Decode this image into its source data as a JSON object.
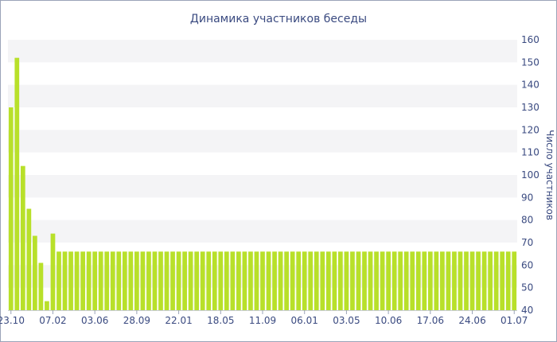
{
  "chart_data": {
    "type": "bar",
    "title": "Динамика участников беседы",
    "xlabel": "",
    "ylabel": "Число участников",
    "ylim": [
      40,
      160
    ],
    "yticks": [
      40,
      50,
      60,
      70,
      80,
      90,
      100,
      110,
      120,
      130,
      140,
      150,
      160
    ],
    "y_axis_side": "right",
    "grid": "alternating horizontal bands",
    "legend": "none",
    "bar_color": "#b8e02a",
    "x_tick_labels": [
      "23.10",
      "07.02",
      "03.06",
      "28.09",
      "22.01",
      "18.05",
      "11.09",
      "06.01",
      "03.05",
      "10.06",
      "17.06",
      "24.06",
      "01.07"
    ],
    "x_tick_positions": [
      0,
      7,
      14,
      21,
      28,
      35,
      42,
      49,
      56,
      63,
      70,
      77,
      84
    ],
    "values": [
      130,
      152,
      104,
      85,
      73,
      61,
      44,
      74,
      66,
      66,
      66,
      66,
      66,
      66,
      66,
      66,
      66,
      66,
      66,
      66,
      66,
      66,
      66,
      66,
      66,
      66,
      66,
      66,
      66,
      66,
      66,
      66,
      66,
      66,
      66,
      66,
      66,
      66,
      66,
      66,
      66,
      66,
      66,
      66,
      66,
      66,
      66,
      66,
      66,
      66,
      66,
      66,
      66,
      66,
      66,
      66,
      66,
      66,
      66,
      66,
      66,
      66,
      66,
      66,
      66,
      66,
      66,
      66,
      66,
      66,
      66,
      66,
      66,
      66,
      66,
      66,
      66,
      66,
      66,
      66,
      66,
      66,
      66,
      66,
      66
    ]
  }
}
